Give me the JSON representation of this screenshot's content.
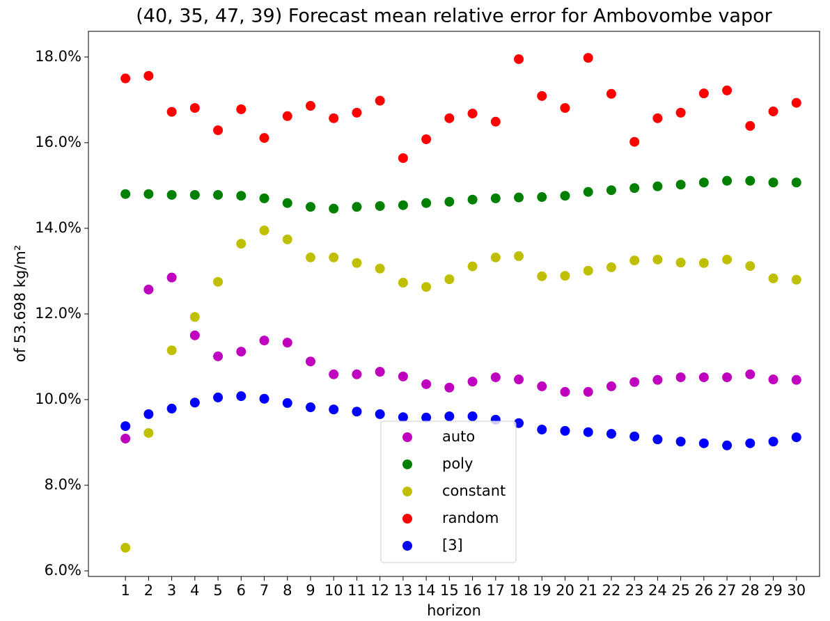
{
  "chart_data": {
    "type": "scatter",
    "title": "(40, 35, 47, 39) Forecast mean relative error for Ambovombe vapor",
    "x_label": "horizon",
    "y_label": "of 53.698 kg/m²",
    "x": [
      1,
      2,
      3,
      4,
      5,
      6,
      7,
      8,
      9,
      10,
      11,
      12,
      13,
      14,
      15,
      16,
      17,
      18,
      19,
      20,
      21,
      22,
      23,
      24,
      25,
      26,
      27,
      28,
      29,
      30
    ],
    "series": [
      {
        "name": "auto",
        "color": "#bf00bf",
        "values": [
          9.09,
          12.57,
          12.85,
          11.5,
          11.01,
          11.12,
          11.38,
          11.33,
          10.89,
          10.59,
          10.59,
          10.65,
          10.54,
          10.36,
          10.28,
          10.42,
          10.52,
          10.47,
          10.31,
          10.18,
          10.18,
          10.31,
          10.41,
          10.46,
          10.52,
          10.52,
          10.52,
          10.59,
          10.47,
          10.46
        ]
      },
      {
        "name": "poly",
        "color": "#008000",
        "values": [
          14.8,
          14.8,
          14.78,
          14.78,
          14.78,
          14.76,
          14.7,
          14.59,
          14.5,
          14.46,
          14.5,
          14.52,
          14.54,
          14.59,
          14.62,
          14.67,
          14.7,
          14.72,
          14.73,
          14.76,
          14.85,
          14.89,
          14.94,
          14.98,
          15.02,
          15.07,
          15.11,
          15.11,
          15.07,
          15.07
        ]
      },
      {
        "name": "constant",
        "color": "#bfbf00",
        "values": [
          6.54,
          9.22,
          11.15,
          11.93,
          12.75,
          13.64,
          13.95,
          13.74,
          13.32,
          13.32,
          13.19,
          13.06,
          12.73,
          12.63,
          12.81,
          13.11,
          13.32,
          13.35,
          12.88,
          12.89,
          13.01,
          13.09,
          13.25,
          13.27,
          13.2,
          13.19,
          13.27,
          13.12,
          12.83,
          12.8
        ]
      },
      {
        "name": "random",
        "color": "#ff0000",
        "values": [
          17.5,
          17.56,
          16.72,
          16.81,
          16.29,
          16.78,
          16.11,
          16.62,
          16.86,
          16.57,
          16.7,
          16.98,
          15.64,
          16.08,
          16.57,
          16.68,
          16.49,
          17.95,
          17.09,
          16.81,
          17.98,
          17.14,
          16.02,
          16.57,
          16.7,
          17.15,
          17.22,
          16.39,
          16.73,
          16.93
        ]
      },
      {
        "name": "[3]",
        "color": "#0000ff",
        "values": [
          9.38,
          9.66,
          9.79,
          9.93,
          10.05,
          10.08,
          10.02,
          9.92,
          9.82,
          9.77,
          9.72,
          9.66,
          9.59,
          9.58,
          9.61,
          9.61,
          9.53,
          9.45,
          9.3,
          9.27,
          9.24,
          9.2,
          9.14,
          9.07,
          9.02,
          8.98,
          8.93,
          8.98,
          9.02,
          9.12
        ]
      }
    ],
    "xlim": [
      -0.6,
      31.0
    ],
    "ylim": [
      5.87,
      18.6
    ],
    "xticks": [
      1,
      2,
      3,
      4,
      5,
      6,
      7,
      8,
      9,
      10,
      11,
      12,
      13,
      14,
      15,
      16,
      17,
      18,
      19,
      20,
      21,
      22,
      23,
      24,
      25,
      26,
      27,
      28,
      29,
      30
    ],
    "yticks": [
      {
        "value": 6,
        "label": "6.0%"
      },
      {
        "value": 8,
        "label": "8.0%"
      },
      {
        "value": 10,
        "label": "10.0%"
      },
      {
        "value": 12,
        "label": "12.0%"
      },
      {
        "value": 14,
        "label": "14.0%"
      },
      {
        "value": 16,
        "label": "16.0%"
      },
      {
        "value": 18,
        "label": "18.0%"
      }
    ],
    "grid": false,
    "legend": "lower center"
  }
}
